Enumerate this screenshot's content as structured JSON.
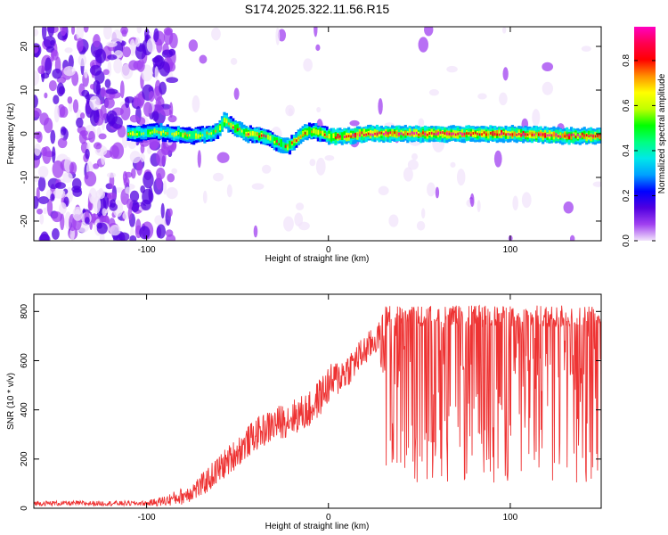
{
  "figure": {
    "title": "S174.2025.322.11.56.R15"
  },
  "chart_data": [
    {
      "type": "heatmap",
      "title": "S174.2025.322.11.56.R15",
      "xlabel": "Height of straight line (km)",
      "ylabel": "Frequency (Hz)",
      "xlim": [
        -162,
        150
      ],
      "ylim": [
        -24.5,
        24.5
      ],
      "x_ticks": [
        -100,
        0,
        100
      ],
      "y_ticks": [
        -20,
        -10,
        0,
        10,
        20
      ],
      "grid": false,
      "colorbar": {
        "label": "Normalized spectral amplitude",
        "range": [
          0,
          0.95
        ],
        "ticks": [
          0.0,
          0.2,
          0.4,
          0.6,
          0.8
        ],
        "colormap": [
          "#f2e4fb",
          "#a040f0",
          "#5000e0",
          "#0000ff",
          "#00a0ff",
          "#00e8e8",
          "#00ff80",
          "#00ff00",
          "#c0ff00",
          "#ffff00",
          "#ff9000",
          "#ff0000",
          "#ff0050",
          "#ff00c0"
        ]
      },
      "ridge": {
        "description_x": [
          -110,
          -95,
          -85,
          -75,
          -65,
          -60,
          -57,
          -52,
          -45,
          -35,
          -28,
          -22,
          -18,
          -12,
          -5,
          0,
          5,
          20,
          60,
          100,
          130,
          150
        ],
        "frequency": [
          0.0,
          0.5,
          0.0,
          -0.5,
          0.0,
          1.0,
          3.0,
          1.5,
          0.0,
          -0.5,
          -2.0,
          -3.0,
          -1.5,
          0.5,
          0.3,
          -0.5,
          -0.8,
          0.0,
          0.0,
          0.0,
          -0.5,
          -0.5
        ]
      },
      "noise_region_x": [
        -162,
        -95
      ]
    },
    {
      "type": "line",
      "xlabel": "Height of straight line (km)",
      "ylabel": "SNR (10 * v/v)",
      "xlim": [
        -162,
        150
      ],
      "ylim": [
        0,
        870
      ],
      "x_ticks": [
        -100,
        0,
        100
      ],
      "y_ticks": [
        0,
        200,
        400,
        600,
        800
      ],
      "grid": false,
      "series": [
        {
          "color": "#ee3333",
          "x": [
            -162,
            -140,
            -120,
            -100,
            -90,
            -80,
            -70,
            -60,
            -50,
            -40,
            -30,
            -20,
            -10,
            0,
            10,
            20,
            28,
            32,
            40,
            60,
            80,
            100,
            120,
            140,
            150
          ],
          "y": [
            20,
            20,
            20,
            20,
            30,
            50,
            90,
            160,
            230,
            300,
            340,
            370,
            400,
            500,
            560,
            640,
            700,
            600,
            600,
            600,
            600,
            600,
            600,
            600,
            600
          ],
          "noise_amplitude_x": [
            -162,
            -100,
            -60,
            0,
            28,
            32,
            150
          ],
          "noise_amplitude": [
            10,
            10,
            60,
            80,
            60,
            260,
            260
          ]
        }
      ]
    }
  ]
}
